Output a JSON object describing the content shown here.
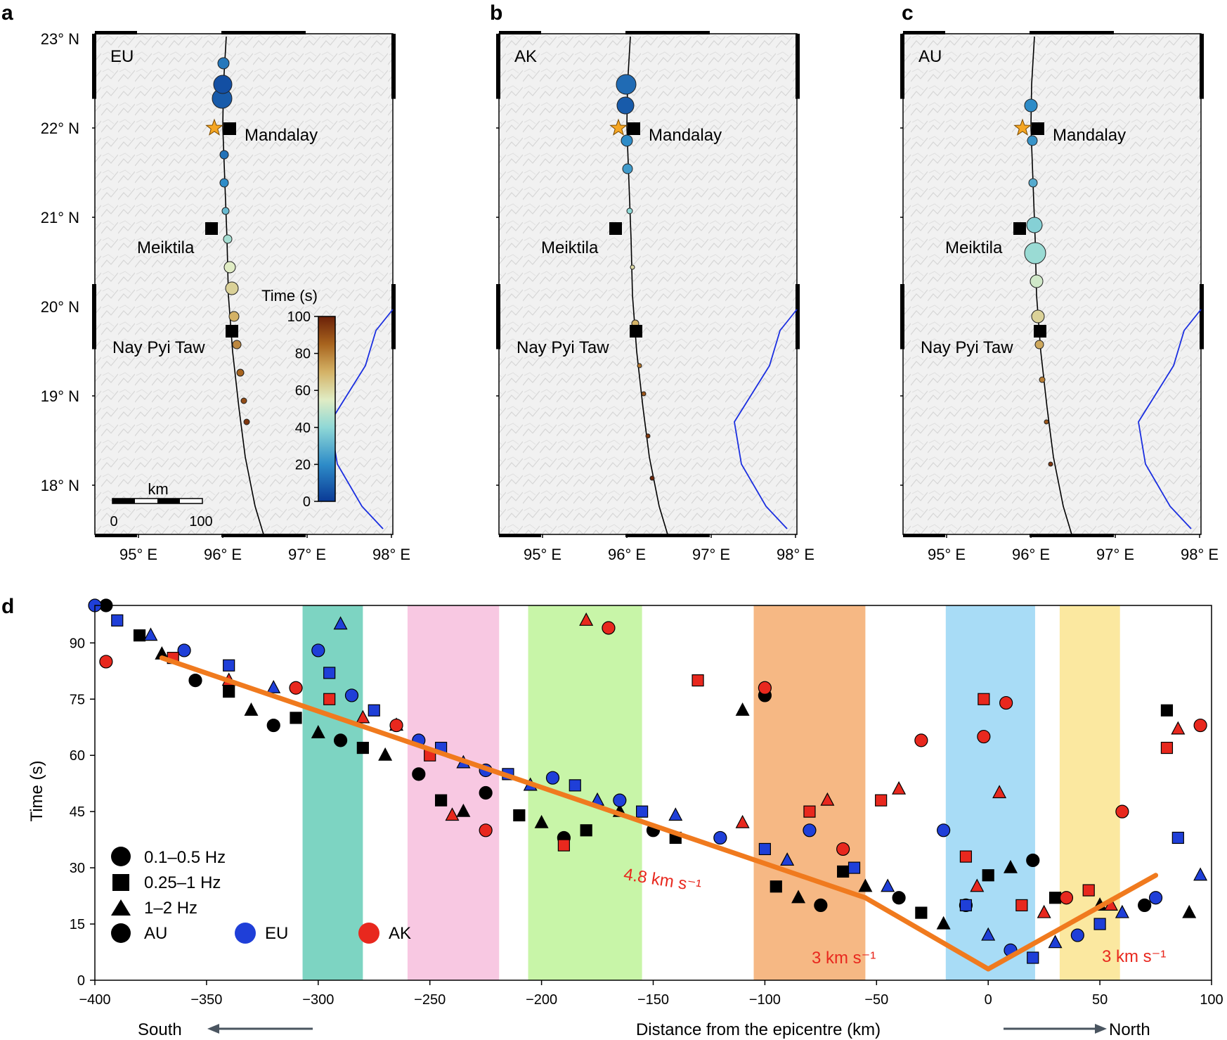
{
  "figure": {
    "panels": [
      {
        "letter": "a",
        "tag": "EU"
      },
      {
        "letter": "b",
        "tag": "AK"
      },
      {
        "letter": "c",
        "tag": "AU"
      }
    ],
    "panel_d_letter": "d",
    "map_lat_labels": [
      "23° N",
      "22° N",
      "21° N",
      "20° N",
      "19° N",
      "18° N"
    ],
    "map_lon_labels": [
      "95° E",
      "96° E",
      "97° E",
      "98° E"
    ],
    "cities": [
      "Mandalay",
      "Meiktila",
      "Nay Pyi Taw"
    ],
    "colorbar": {
      "title": "Time (s)",
      "ticks": [
        "100",
        "80",
        "60",
        "40",
        "20",
        "0"
      ]
    },
    "scalebar": {
      "unit": "km",
      "start": "0",
      "end": "100"
    },
    "colors": {
      "eu": "#1f3fd8",
      "ak": "#e8281e",
      "au": "#000000",
      "fit": "#f07a1e",
      "river": "#1a2ee0"
    }
  },
  "chart_data": {
    "type": "scatter",
    "xlabel": "Distance from the epicentre (km)",
    "ylabel": "Time (s)",
    "xlim": [
      -400,
      100
    ],
    "ylim": [
      0,
      100
    ],
    "xticks": [
      "−400",
      "−350",
      "−300",
      "−250",
      "−200",
      "−150",
      "−100",
      "−50",
      "0",
      "50",
      "100"
    ],
    "yticks": [
      "0",
      "15",
      "30",
      "45",
      "60",
      "75",
      "90"
    ],
    "direction_labels": {
      "south": "South",
      "north": "North"
    },
    "bands": [
      {
        "x0": -307,
        "x1": -280,
        "color": "#7dd4c2"
      },
      {
        "x0": -260,
        "x1": -219,
        "color": "#f8c8e2"
      },
      {
        "x0": -206,
        "x1": -155,
        "color": "#c8f5a8"
      },
      {
        "x0": -105,
        "x1": -55,
        "color": "#f6b884"
      },
      {
        "x0": -19,
        "x1": 21,
        "color": "#a8dcf6"
      },
      {
        "x0": 32,
        "x1": 59,
        "color": "#fbe8a0"
      }
    ],
    "fit_lines": [
      {
        "label": "4.8 km s⁻¹",
        "points": [
          [
            -370,
            86
          ],
          [
            -55,
            22
          ]
        ]
      },
      {
        "label": "3 km s⁻¹",
        "points": [
          [
            -55,
            22
          ],
          [
            0,
            3
          ]
        ]
      },
      {
        "label": "3 km s⁻¹",
        "points": [
          [
            0,
            3
          ],
          [
            75,
            28
          ]
        ]
      }
    ],
    "legend": {
      "frequency": [
        "0.1–0.5 Hz",
        "0.25–1 Hz",
        "1–2 Hz"
      ],
      "arrays": [
        "AU",
        "EU",
        "AK"
      ]
    },
    "series": [
      {
        "name": "AU",
        "points": [
          [
            -395,
            100
          ],
          [
            -380,
            92
          ],
          [
            -370,
            87
          ],
          [
            -355,
            80
          ],
          [
            -340,
            77
          ],
          [
            -330,
            72
          ],
          [
            -320,
            68
          ],
          [
            -310,
            70
          ],
          [
            -300,
            66
          ],
          [
            -290,
            64
          ],
          [
            -280,
            62
          ],
          [
            -270,
            60
          ],
          [
            -255,
            55
          ],
          [
            -245,
            48
          ],
          [
            -235,
            45
          ],
          [
            -225,
            50
          ],
          [
            -210,
            44
          ],
          [
            -200,
            42
          ],
          [
            -190,
            38
          ],
          [
            -180,
            40
          ],
          [
            -165,
            45
          ],
          [
            -150,
            40
          ],
          [
            -140,
            38
          ],
          [
            -110,
            72
          ],
          [
            -100,
            76
          ],
          [
            -95,
            25
          ],
          [
            -85,
            22
          ],
          [
            -75,
            20
          ],
          [
            -65,
            29
          ],
          [
            -55,
            25
          ],
          [
            -40,
            22
          ],
          [
            -30,
            18
          ],
          [
            -20,
            15
          ],
          [
            -10,
            20
          ],
          [
            0,
            28
          ],
          [
            10,
            30
          ],
          [
            20,
            32
          ],
          [
            30,
            22
          ],
          [
            50,
            20
          ],
          [
            70,
            20
          ],
          [
            80,
            72
          ],
          [
            90,
            18
          ]
        ]
      },
      {
        "name": "EU",
        "points": [
          [
            -400,
            100
          ],
          [
            -390,
            96
          ],
          [
            -375,
            92
          ],
          [
            -360,
            88
          ],
          [
            -340,
            84
          ],
          [
            -320,
            78
          ],
          [
            -300,
            88
          ],
          [
            -295,
            82
          ],
          [
            -290,
            95
          ],
          [
            -285,
            76
          ],
          [
            -275,
            72
          ],
          [
            -265,
            68
          ],
          [
            -255,
            64
          ],
          [
            -245,
            62
          ],
          [
            -235,
            58
          ],
          [
            -225,
            56
          ],
          [
            -215,
            55
          ],
          [
            -205,
            52
          ],
          [
            -195,
            54
          ],
          [
            -185,
            52
          ],
          [
            -175,
            48
          ],
          [
            -165,
            48
          ],
          [
            -155,
            45
          ],
          [
            -140,
            44
          ],
          [
            -120,
            38
          ],
          [
            -100,
            35
          ],
          [
            -90,
            32
          ],
          [
            -80,
            40
          ],
          [
            -60,
            30
          ],
          [
            -45,
            25
          ],
          [
            -20,
            40
          ],
          [
            -10,
            20
          ],
          [
            0,
            12
          ],
          [
            10,
            8
          ],
          [
            20,
            6
          ],
          [
            30,
            10
          ],
          [
            40,
            12
          ],
          [
            50,
            15
          ],
          [
            60,
            18
          ],
          [
            75,
            22
          ],
          [
            85,
            38
          ],
          [
            95,
            28
          ]
        ]
      },
      {
        "name": "AK",
        "points": [
          [
            -395,
            85
          ],
          [
            -365,
            86
          ],
          [
            -340,
            80
          ],
          [
            -310,
            78
          ],
          [
            -295,
            75
          ],
          [
            -280,
            70
          ],
          [
            -265,
            68
          ],
          [
            -250,
            60
          ],
          [
            -240,
            44
          ],
          [
            -225,
            40
          ],
          [
            -190,
            36
          ],
          [
            -180,
            96
          ],
          [
            -170,
            94
          ],
          [
            -130,
            80
          ],
          [
            -110,
            42
          ],
          [
            -100,
            78
          ],
          [
            -80,
            45
          ],
          [
            -72,
            48
          ],
          [
            -65,
            35
          ],
          [
            -48,
            48
          ],
          [
            -40,
            51
          ],
          [
            -30,
            64
          ],
          [
            -10,
            33
          ],
          [
            -5,
            25
          ],
          [
            -2,
            65
          ],
          [
            -2,
            75
          ],
          [
            5,
            50
          ],
          [
            8,
            74
          ],
          [
            15,
            20
          ],
          [
            25,
            18
          ],
          [
            35,
            22
          ],
          [
            45,
            24
          ],
          [
            55,
            20
          ],
          [
            60,
            45
          ],
          [
            80,
            62
          ],
          [
            85,
            67
          ],
          [
            95,
            68
          ]
        ]
      }
    ]
  }
}
